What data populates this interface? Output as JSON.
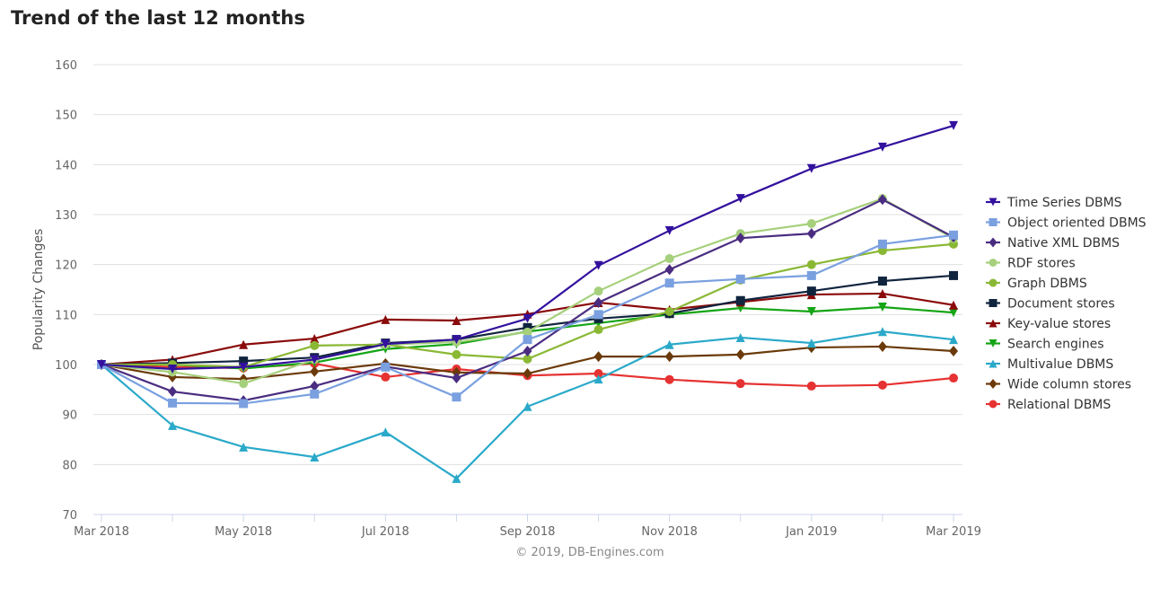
{
  "title": "Trend of the last 12 months",
  "credit": "© 2019, DB-Engines.com",
  "chart_data": {
    "type": "line",
    "title": "Trend of the last 12 months",
    "ylabel": "Popularity Changes",
    "xlabel": "",
    "ylim": [
      70,
      160
    ],
    "yticks": [
      70,
      80,
      90,
      100,
      110,
      120,
      130,
      140,
      150,
      160
    ],
    "x": [
      "Mar 2018",
      "Apr 2018",
      "May 2018",
      "Jun 2018",
      "Jul 2018",
      "Aug 2018",
      "Sep 2018",
      "Oct 2018",
      "Nov 2018",
      "Dec 2018",
      "Jan 2019",
      "Feb 2019",
      "Mar 2019"
    ],
    "xtick_labels": [
      "Mar 2018",
      "May 2018",
      "Jul 2018",
      "Sep 2018",
      "Nov 2018",
      "Jan 2019",
      "Mar 2019"
    ],
    "grid": "horizontal",
    "legend": "right",
    "series": [
      {
        "name": "Time Series DBMS",
        "color": "#33119e",
        "marker": "triangle-down",
        "values": [
          100,
          99.1,
          99.5,
          101,
          104.1,
          105,
          109.2,
          119.8,
          126.8,
          133.2,
          139.2,
          143.5,
          147.8
        ]
      },
      {
        "name": "Object oriented DBMS",
        "color": "#7aa0e0",
        "marker": "square",
        "values": [
          100,
          92.3,
          92.2,
          94.1,
          99.5,
          93.5,
          105,
          110,
          116.3,
          117.1,
          117.8,
          124.1,
          125.9
        ]
      },
      {
        "name": "Native XML DBMS",
        "color": "#4a2d80",
        "marker": "diamond",
        "values": [
          100,
          94.6,
          92.8,
          95.7,
          99.6,
          97.3,
          102.7,
          112.4,
          119,
          125.3,
          126.2,
          133,
          125.5
        ]
      },
      {
        "name": "RDF stores",
        "color": "#a6d07c",
        "marker": "circle",
        "values": [
          100,
          98.5,
          96.2,
          101,
          104,
          104.5,
          106.5,
          114.7,
          121.2,
          126.2,
          128.2,
          133.2,
          125.2
        ]
      },
      {
        "name": "Graph DBMS",
        "color": "#8ab834",
        "marker": "circle",
        "values": [
          100,
          100,
          99.5,
          103.8,
          104,
          102,
          101.1,
          107,
          110.6,
          116.9,
          120,
          122.8,
          124.1
        ]
      },
      {
        "name": "Document stores",
        "color": "#10243e",
        "marker": "square",
        "values": [
          100,
          100.3,
          100.7,
          101.4,
          104.3,
          105,
          107.4,
          109.2,
          110.2,
          112.8,
          114.7,
          116.7,
          117.8
        ]
      },
      {
        "name": "Key-value stores",
        "color": "#8b0a0a",
        "marker": "triangle",
        "values": [
          100,
          101,
          104,
          105.2,
          109,
          108.8,
          110.1,
          112.4,
          111,
          112.5,
          114,
          114.2,
          111.9
        ]
      },
      {
        "name": "Search engines",
        "color": "#15a515",
        "marker": "triangle-down",
        "values": [
          100,
          100,
          99.2,
          100.4,
          103.1,
          104.1,
          106.6,
          108.3,
          110,
          111.3,
          110.6,
          111.5,
          110.4
        ]
      },
      {
        "name": "Multivalue DBMS",
        "color": "#2aa9c9",
        "marker": "triangle",
        "values": [
          100,
          87.8,
          83.5,
          81.5,
          86.5,
          77.2,
          91.6,
          97.1,
          104,
          105.4,
          104.3,
          106.6,
          105
        ]
      },
      {
        "name": "Wide column stores",
        "color": "#6b3a0a",
        "marker": "diamond",
        "values": [
          100,
          97.5,
          97.1,
          98.6,
          100.2,
          98.4,
          98.2,
          101.6,
          101.6,
          102,
          103.4,
          103.6,
          102.7
        ]
      },
      {
        "name": "Relational DBMS",
        "color": "#e63232",
        "marker": "circle",
        "values": [
          100,
          99.5,
          99.3,
          100.2,
          97.5,
          99.1,
          97.8,
          98.2,
          97,
          96.2,
          95.7,
          95.9,
          97.3
        ]
      }
    ]
  }
}
